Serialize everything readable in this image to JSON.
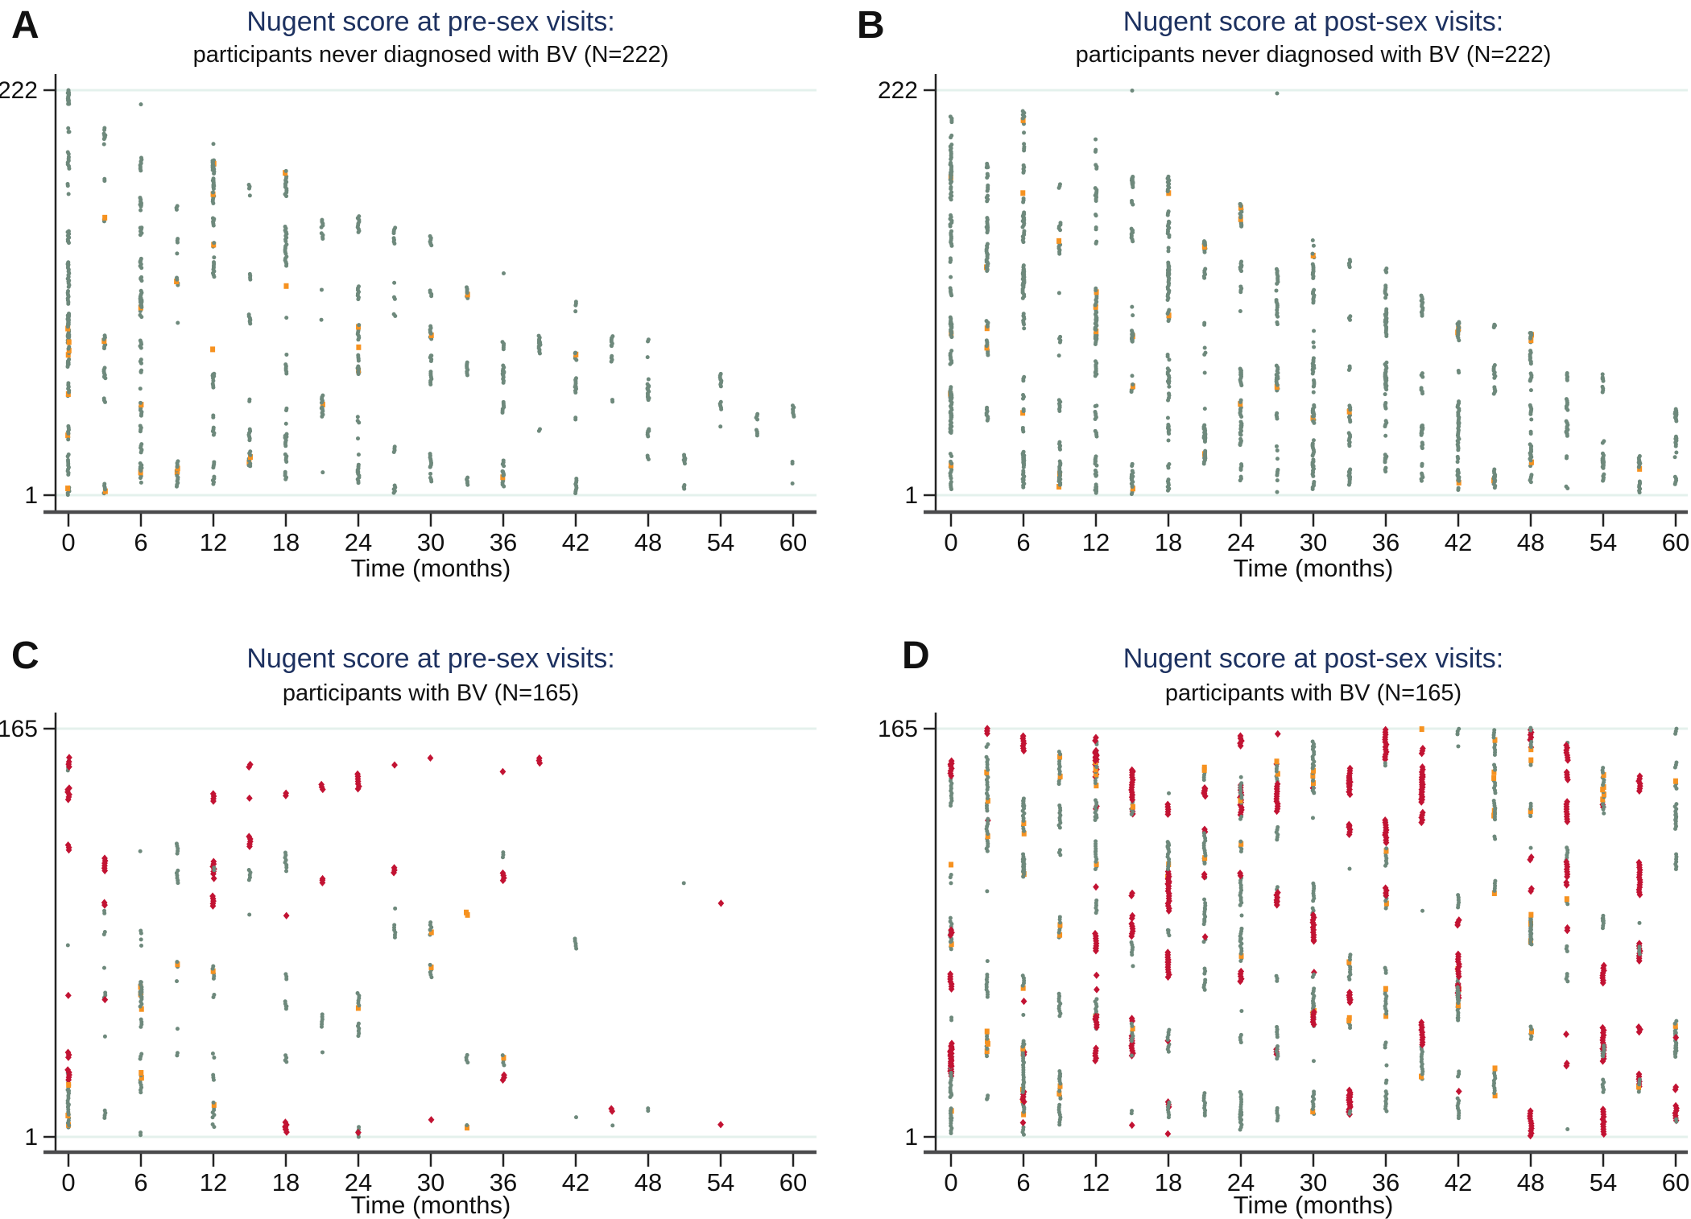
{
  "style": {
    "title_color": "#1d3160",
    "subtitle_color": "#111111",
    "marker_colors": {
      "normal": "#6e897c",
      "intermediate": "#f69220",
      "bv": "#c21333"
    },
    "gridline_color": "#e4f1ec",
    "x_axis_color": "#4b4b4d",
    "y_axis_color": "#232323",
    "tick_label_color": "#111111"
  },
  "chart_data": [
    {
      "type": "scatter",
      "panel": "A",
      "title": "Nugent score at pre-sex visits:",
      "subtitle": "participants never diagnosed with BV (N=222)",
      "xlabel": "Time (months)",
      "x_ticks": [
        0,
        6,
        12,
        18,
        24,
        30,
        36,
        42,
        48,
        54,
        60
      ],
      "x_range": [
        0,
        60
      ],
      "y_axis": {
        "top_label": "222",
        "bottom_label": "1",
        "n": 222
      },
      "marker_color_names": [
        "normal",
        "intermediate"
      ],
      "columns": {
        "times": [
          0,
          3,
          6,
          9,
          12,
          15,
          18,
          21,
          24,
          27,
          30,
          33,
          36,
          39,
          42,
          45,
          48,
          51,
          54,
          57,
          60
        ],
        "counts": [
          150,
          40,
          95,
          30,
          80,
          35,
          70,
          28,
          60,
          22,
          48,
          20,
          42,
          16,
          32,
          13,
          26,
          11,
          18,
          8,
          12
        ],
        "top_frac": [
          1.0,
          0.93,
          0.95,
          0.88,
          0.88,
          0.82,
          0.8,
          0.74,
          0.72,
          0.66,
          0.64,
          0.58,
          0.56,
          0.5,
          0.48,
          0.42,
          0.4,
          0.34,
          0.3,
          0.26,
          0.22
        ]
      },
      "gen": {
        "seed": 11,
        "max_run": 9,
        "red_frac": 0.0,
        "orange_frac": 0.035,
        "bands": null
      },
      "extra_points": [
        {
          "t": 0,
          "frac": 1.0,
          "color": "green"
        },
        {
          "t": 6,
          "frac": 0.965,
          "color": "green"
        }
      ]
    },
    {
      "type": "scatter",
      "panel": "B",
      "title": "Nugent score at post-sex visits:",
      "subtitle": "participants never diagnosed with BV (N=222)",
      "xlabel": "Time (months)",
      "x_ticks": [
        0,
        6,
        12,
        18,
        24,
        30,
        36,
        42,
        48,
        54,
        60
      ],
      "x_range": [
        0,
        60
      ],
      "y_axis": {
        "top_label": "222",
        "bottom_label": "1",
        "n": 222
      },
      "marker_color_names": [
        "normal",
        "intermediate"
      ],
      "columns": {
        "times": [
          0,
          3,
          6,
          9,
          12,
          15,
          18,
          21,
          24,
          27,
          30,
          33,
          36,
          39,
          42,
          45,
          48,
          51,
          54,
          57,
          60
        ],
        "counts": [
          165,
          70,
          130,
          60,
          115,
          65,
          105,
          55,
          95,
          50,
          88,
          48,
          78,
          42,
          68,
          36,
          58,
          28,
          40,
          18,
          26
        ],
        "top_frac": [
          1.0,
          0.93,
          0.95,
          0.88,
          0.88,
          0.82,
          0.8,
          0.74,
          0.72,
          0.66,
          0.64,
          0.58,
          0.56,
          0.5,
          0.48,
          0.42,
          0.4,
          0.34,
          0.3,
          0.26,
          0.22
        ]
      },
      "gen": {
        "seed": 22,
        "max_run": 10,
        "red_frac": 0.0,
        "orange_frac": 0.03,
        "bands": null
      },
      "extra_points": [
        {
          "t": 15,
          "frac": 0.999,
          "color": "green"
        },
        {
          "t": 27,
          "frac": 0.992,
          "color": "green"
        }
      ]
    },
    {
      "type": "scatter",
      "panel": "C",
      "title": "Nugent score at pre-sex visits:",
      "subtitle": "participants with BV (N=165)",
      "xlabel": "Time (months)",
      "x_ticks": [
        0,
        6,
        12,
        18,
        24,
        30,
        36,
        42,
        48,
        54,
        60
      ],
      "x_range": [
        0,
        60
      ],
      "y_axis": {
        "top_label": "165",
        "bottom_label": "1",
        "n": 165
      },
      "marker_color_names": [
        "normal",
        "intermediate",
        "bv"
      ],
      "columns": {
        "times": [
          0,
          3,
          6,
          9,
          12,
          15,
          18,
          21,
          24,
          27,
          30,
          33,
          36,
          39,
          42,
          45,
          48,
          51,
          54,
          57,
          60
        ],
        "counts": [
          60,
          22,
          45,
          18,
          40,
          14,
          30,
          13,
          26,
          11,
          20,
          8,
          16,
          7,
          6,
          3,
          2,
          1,
          1,
          0,
          0
        ],
        "top_frac": [
          0.93,
          0.93,
          0.93,
          0.93,
          0.93,
          0.93,
          0.93,
          0.93,
          0.93,
          0.93,
          0.93,
          0.93,
          0.93,
          0.93,
          0.93,
          0.93,
          0.93,
          0.93,
          0.93,
          0.93,
          0.93
        ]
      },
      "gen": {
        "seed": 33,
        "max_run": 7,
        "red_frac": 0.3,
        "orange_frac": 0.07,
        "bands": [
          0.91,
          0.84,
          0.7,
          0.64,
          0.56,
          0.48,
          0.4,
          0.33,
          0.26,
          0.19,
          0.12,
          0.06,
          0.01
        ]
      },
      "extra_points": [
        {
          "t": 54,
          "frac": 0.03,
          "color": "red"
        }
      ]
    },
    {
      "type": "scatter",
      "panel": "D",
      "title": "Nugent score at post-sex visits:",
      "subtitle": "participants with BV (N=165)",
      "xlabel": "Time (months)",
      "x_ticks": [
        0,
        6,
        12,
        18,
        24,
        30,
        36,
        42,
        48,
        54,
        60
      ],
      "x_range": [
        0,
        60
      ],
      "y_axis": {
        "top_label": "165",
        "bottom_label": "1",
        "n": 165
      },
      "marker_color_names": [
        "normal",
        "intermediate",
        "bv"
      ],
      "columns": {
        "times": [
          0,
          3,
          6,
          9,
          12,
          15,
          18,
          21,
          24,
          27,
          30,
          33,
          36,
          39,
          42,
          45,
          48,
          51,
          54,
          57,
          60
        ],
        "counts": [
          120,
          75,
          110,
          70,
          105,
          72,
          100,
          68,
          98,
          66,
          95,
          65,
          92,
          62,
          88,
          58,
          85,
          55,
          80,
          50,
          75
        ],
        "top_frac": [
          1.0,
          1.0,
          1.0,
          1.0,
          1.0,
          1.0,
          1.0,
          1.0,
          1.0,
          1.0,
          1.0,
          1.0,
          1.0,
          1.0,
          1.0,
          1.0,
          1.0,
          1.0,
          1.0,
          1.0,
          1.0
        ]
      },
      "gen": {
        "seed": 44,
        "max_run": 14,
        "red_frac": 0.36,
        "orange_frac": 0.08,
        "bands": null
      },
      "extra_points": []
    }
  ]
}
